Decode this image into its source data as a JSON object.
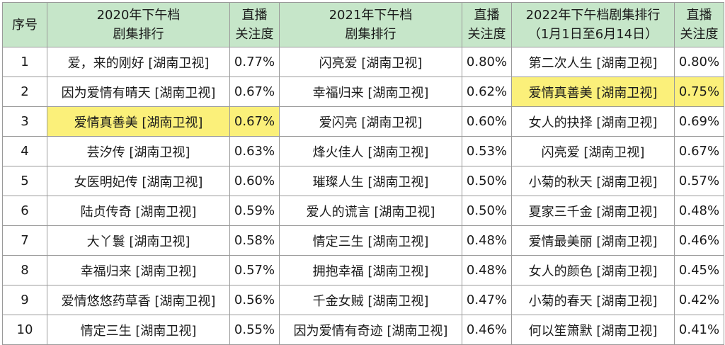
{
  "headers": {
    "rank": "序号",
    "y2020": {
      "line1": "2020年下午档",
      "line2": "剧集排行"
    },
    "y2020_att": {
      "line1": "直播",
      "line2": "关注度"
    },
    "y2021": {
      "line1": "2021年下午档",
      "line2": "剧集排行"
    },
    "y2021_att": {
      "line1": "直播",
      "line2": "关注度"
    },
    "y2022": {
      "line1": "2022年下午档剧集排行",
      "line2": "（1月1日至6月14日）"
    },
    "y2022_att": {
      "line1": "直播",
      "line2": "关注度"
    }
  },
  "colors": {
    "header_bg": "#c6e6c9",
    "highlight": "#fbf07a",
    "border": "#9a9a9a"
  },
  "rows": [
    {
      "rank": "1",
      "show2020": "爱，来的刚好 [湖南卫视]",
      "att2020": "0.77%",
      "show2021": "闪亮爱 [湖南卫视]",
      "att2021": "0.80%",
      "show2022": "第二次人生 [湖南卫视]",
      "att2022": "0.80%"
    },
    {
      "rank": "2",
      "show2020": "因为爱情有晴天 [湖南卫视]",
      "att2020": "0.67%",
      "show2021": "幸福归来 [湖南卫视]",
      "att2021": "0.62%",
      "show2022": "爱情真善美 [湖南卫视]",
      "att2022": "0.75%"
    },
    {
      "rank": "3",
      "show2020": "爱情真善美 [湖南卫视]",
      "att2020": "0.67%",
      "show2021": "爱闪亮 [湖南卫视]",
      "att2021": "0.60%",
      "show2022": "女人的抉择 [湖南卫视]",
      "att2022": "0.69%"
    },
    {
      "rank": "4",
      "show2020": "芸汐传 [湖南卫视]",
      "att2020": "0.63%",
      "show2021": "烽火佳人 [湖南卫视]",
      "att2021": "0.53%",
      "show2022": "闪亮爱 [湖南卫视]",
      "att2022": "0.67%"
    },
    {
      "rank": "5",
      "show2020": "女医明妃传 [湖南卫视]",
      "att2020": "0.60%",
      "show2021": "璀璨人生 [湖南卫视]",
      "att2021": "0.50%",
      "show2022": "小菊的秋天 [湖南卫视]",
      "att2022": "0.57%"
    },
    {
      "rank": "6",
      "show2020": "陆贞传奇 [湖南卫视]",
      "att2020": "0.59%",
      "show2021": "爱人的谎言 [湖南卫视]",
      "att2021": "0.50%",
      "show2022": "夏家三千金 [湖南卫视]",
      "att2022": "0.48%"
    },
    {
      "rank": "7",
      "show2020": "大丫鬟 [湖南卫视]",
      "att2020": "0.58%",
      "show2021": "情定三生 [湖南卫视]",
      "att2021": "0.48%",
      "show2022": "爱情最美丽 [湖南卫视]",
      "att2022": "0.46%"
    },
    {
      "rank": "8",
      "show2020": "幸福归来 [湖南卫视]",
      "att2020": "0.57%",
      "show2021": "拥抱幸福 [湖南卫视]",
      "att2021": "0.48%",
      "show2022": "女人的颜色 [湖南卫视]",
      "att2022": "0.45%"
    },
    {
      "rank": "9",
      "show2020": "爱情悠悠药草香 [湖南卫视]",
      "att2020": "0.56%",
      "show2021": "千金女贼 [湖南卫视]",
      "att2021": "0.47%",
      "show2022": "小菊的春天 [湖南卫视]",
      "att2022": "0.42%"
    },
    {
      "rank": "10",
      "show2020": "情定三生 [湖南卫视]",
      "att2020": "0.55%",
      "show2021": "因为爱情有奇迹 [湖南卫视]",
      "att2021": "0.46%",
      "show2022": "何以笙箫默 [湖南卫视]",
      "att2022": "0.41%"
    }
  ]
}
